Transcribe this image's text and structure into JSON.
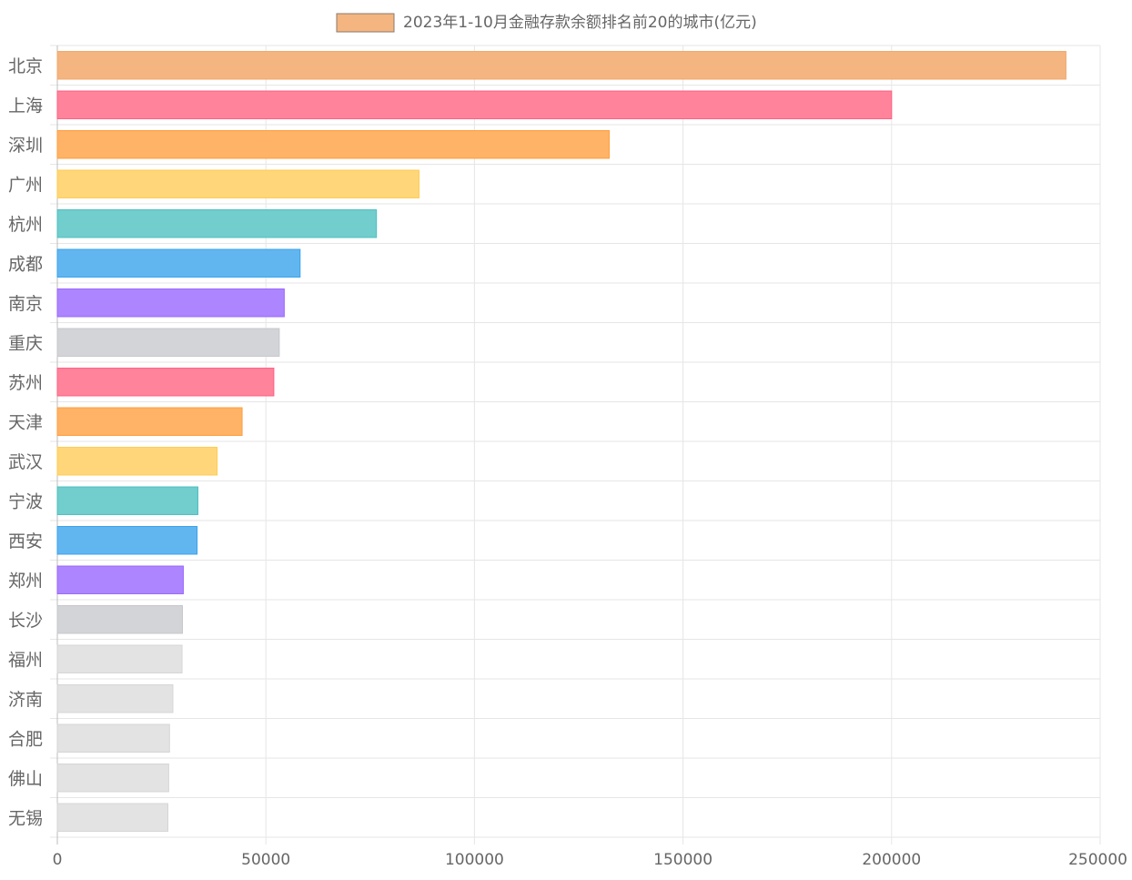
{
  "chart_data": {
    "type": "bar",
    "orientation": "horizontal",
    "legend": {
      "label": "2023年1-10月金融存款余额排名前20的城市(亿元)",
      "placement": "top-center",
      "swatch_color": "#f4b580"
    },
    "categories": [
      "北京",
      "上海",
      "深圳",
      "广州",
      "杭州",
      "成都",
      "南京",
      "重庆",
      "苏州",
      "天津",
      "武汉",
      "宁波",
      "西安",
      "郑州",
      "长沙",
      "福州",
      "济南",
      "合肥",
      "佛山",
      "无锡"
    ],
    "series": [
      {
        "name": "2023年1-10月金融存款余额排名前20的城市(亿元)",
        "values": [
          241800,
          200000,
          132300,
          86700,
          76500,
          58200,
          54400,
          53200,
          51900,
          44300,
          38300,
          33700,
          33500,
          30200,
          30000,
          29900,
          27700,
          26900,
          26700,
          26500
        ]
      }
    ],
    "colors": [
      "#f4b580",
      "#ff839b",
      "#ffb366",
      "#ffd67a",
      "#72cdcd",
      "#62b6f0",
      "#ad85ff",
      "#d3d4d8",
      "#ff839b",
      "#ffb366",
      "#ffd67a",
      "#72cdcd",
      "#62b6f0",
      "#ad85ff",
      "#d3d4d8",
      "#e3e3e3",
      "#e3e3e3",
      "#e3e3e3",
      "#e3e3e3",
      "#e3e3e3"
    ],
    "border_colors": [
      "#f0a96a",
      "#ff5f82",
      "#ff9d3d",
      "#ffcb50",
      "#4cbfc0",
      "#38a2ec",
      "#9966ff",
      "#c6c7cb",
      "#ff5f82",
      "#ff9d3d",
      "#ffcb50",
      "#4cbfc0",
      "#38a2ec",
      "#9966ff",
      "#c6c7cb",
      "#d6d6d6",
      "#d6d6d6",
      "#d6d6d6",
      "#d6d6d6",
      "#d6d6d6"
    ],
    "xlim": [
      0,
      250000
    ],
    "x_ticks": [
      0,
      50000,
      100000,
      150000,
      200000,
      250000
    ],
    "grid": true
  }
}
